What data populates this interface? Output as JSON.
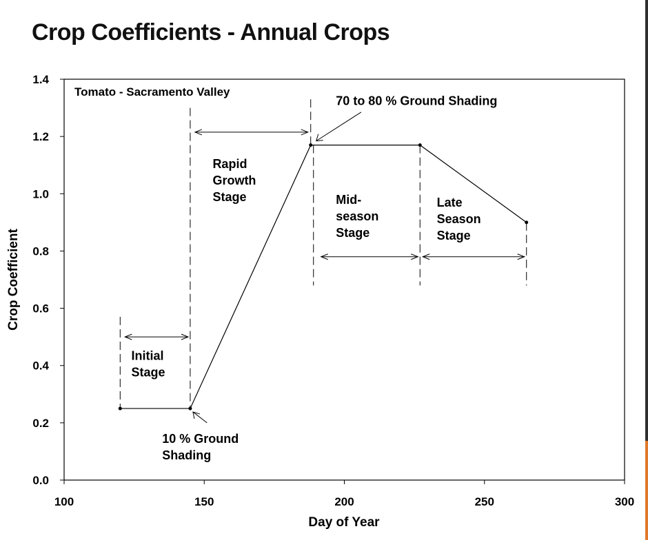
{
  "page": {
    "title": "Crop Coefficients - Annual Crops"
  },
  "chart_data": {
    "type": "line",
    "title": "Tomato - Sacramento Valley",
    "xlabel": "Day of Year",
    "ylabel": "Crop Coefficient",
    "xlim": [
      100,
      300
    ],
    "ylim": [
      0.0,
      1.4
    ],
    "x_ticks": [
      "100",
      "150",
      "200",
      "250",
      "300"
    ],
    "y_ticks": [
      "0.0",
      "0.2",
      "0.4",
      "0.6",
      "0.8",
      "1.0",
      "1.2",
      "1.4"
    ],
    "grid": false,
    "series": [
      {
        "x": [
          120,
          145,
          188,
          227,
          265
        ],
        "y": [
          0.25,
          0.25,
          1.17,
          1.17,
          0.9
        ]
      }
    ],
    "stages": [
      {
        "label": [
          "Initial",
          "Stage"
        ],
        "start": 120,
        "end": 145
      },
      {
        "label": [
          "Rapid",
          "Growth",
          "Stage"
        ],
        "start": 145,
        "end": 188
      },
      {
        "label": [
          "Mid-",
          "season",
          "Stage"
        ],
        "start": 188,
        "end": 227
      },
      {
        "label": [
          "Late",
          "Season",
          "Stage"
        ],
        "start": 227,
        "end": 265
      }
    ],
    "annotations": [
      {
        "text": [
          "10 % Ground",
          "Shading"
        ],
        "x": 145,
        "y": 0.25
      },
      {
        "text": [
          "70 to 80 % Ground Shading"
        ],
        "x": 188,
        "y": 1.17
      }
    ],
    "colors": {
      "line": "#000000",
      "background": "#ffffff"
    }
  }
}
